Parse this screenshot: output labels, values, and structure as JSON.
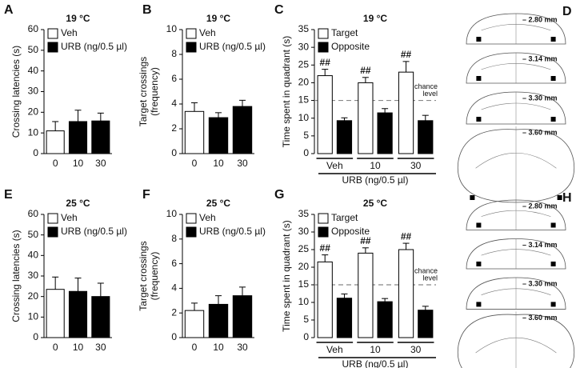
{
  "chart_data": [
    {
      "type": "bar",
      "panel": "A",
      "title": "19 °C",
      "ylabel": [
        "Crossing latencies (s)"
      ],
      "categories": [
        "0",
        "10",
        "30"
      ],
      "values": [
        11,
        15.5,
        15.8
      ],
      "errors": [
        4.5,
        5.5,
        3.8
      ],
      "colors": [
        "#ffffff",
        "#000000",
        "#000000"
      ],
      "legend": [
        {
          "name": "Veh",
          "color": "#ffffff"
        },
        {
          "name": "URB (ng/0.5 µl)",
          "color": "#000000"
        }
      ],
      "ylim": [
        0,
        60
      ],
      "yticks": [
        0,
        10,
        20,
        30,
        40,
        50,
        60
      ]
    },
    {
      "type": "bar",
      "panel": "B",
      "title": "19 °C",
      "ylabel": [
        "Target crossings",
        "(frequency)"
      ],
      "categories": [
        "0",
        "10",
        "30"
      ],
      "values": [
        3.4,
        2.9,
        3.8
      ],
      "errors": [
        0.7,
        0.4,
        0.5
      ],
      "colors": [
        "#ffffff",
        "#000000",
        "#000000"
      ],
      "legend": [
        {
          "name": "Veh",
          "color": "#ffffff"
        },
        {
          "name": "URB (ng/0.5 µl)",
          "color": "#000000"
        }
      ],
      "ylim": [
        0,
        10
      ],
      "yticks": [
        0,
        2,
        4,
        6,
        8,
        10
      ]
    },
    {
      "type": "grouped-bar",
      "panel": "C",
      "title": "19 °C",
      "ylabel": [
        "Time spent in quadrant (s)"
      ],
      "xlabel": "URB (ng/0.5 µl)",
      "categories": [
        "Veh",
        "10",
        "30"
      ],
      "series": [
        {
          "name": "Target",
          "color": "#ffffff",
          "values": [
            22,
            20,
            23
          ],
          "errors": [
            1.8,
            1.5,
            3
          ],
          "marks": [
            "##",
            "##",
            "##"
          ]
        },
        {
          "name": "Opposite",
          "color": "#000000",
          "values": [
            9.3,
            11.5,
            9.3
          ],
          "errors": [
            0.8,
            1.2,
            1.5
          ]
        }
      ],
      "hline": {
        "value": 15,
        "label": [
          "chance",
          "level"
        ]
      },
      "ylim": [
        0,
        35
      ],
      "yticks": [
        0,
        5,
        10,
        15,
        20,
        25,
        30,
        35
      ]
    },
    {
      "type": "diagram",
      "panel": "D",
      "labels": [
        "– 2.80 mm",
        "– 3.14 mm",
        "– 3.30 mm",
        "– 3.60 mm"
      ]
    },
    {
      "type": "bar",
      "panel": "E",
      "title": "25 °C",
      "ylabel": [
        "Crossing latencies (s)"
      ],
      "categories": [
        "0",
        "10",
        "30"
      ],
      "values": [
        23.5,
        22.5,
        20
      ],
      "errors": [
        6,
        6.5,
        6.5
      ],
      "colors": [
        "#ffffff",
        "#000000",
        "#000000"
      ],
      "legend": [
        {
          "name": "Veh",
          "color": "#ffffff"
        },
        {
          "name": "URB (ng/0.5 µl)",
          "color": "#000000"
        }
      ],
      "ylim": [
        0,
        60
      ],
      "yticks": [
        0,
        10,
        20,
        30,
        40,
        50,
        60
      ]
    },
    {
      "type": "bar",
      "panel": "F",
      "title": "25 °C",
      "ylabel": [
        "Target crossings",
        "(frequency)"
      ],
      "categories": [
        "0",
        "10",
        "30"
      ],
      "values": [
        2.2,
        2.7,
        3.4
      ],
      "errors": [
        0.6,
        0.7,
        0.7
      ],
      "colors": [
        "#ffffff",
        "#000000",
        "#000000"
      ],
      "legend": [
        {
          "name": "Veh",
          "color": "#ffffff"
        },
        {
          "name": "URB (ng/0.5 µl)",
          "color": "#000000"
        }
      ],
      "ylim": [
        0,
        10
      ],
      "yticks": [
        0,
        2,
        4,
        6,
        8,
        10
      ]
    },
    {
      "type": "grouped-bar",
      "panel": "G",
      "title": "25 °C",
      "ylabel": [
        "Time spent in quadrant (s)"
      ],
      "xlabel": "URB (ng/0.5 µl)",
      "categories": [
        "Veh",
        "10",
        "30"
      ],
      "series": [
        {
          "name": "Target",
          "color": "#ffffff",
          "values": [
            21.5,
            24,
            25
          ],
          "errors": [
            2,
            1.5,
            1.8
          ],
          "marks": [
            "##",
            "##",
            "##"
          ]
        },
        {
          "name": "Opposite",
          "color": "#000000",
          "values": [
            11.2,
            10.2,
            7.8
          ],
          "errors": [
            1.2,
            0.9,
            1.1
          ]
        }
      ],
      "hline": {
        "value": 15,
        "label": [
          "chance",
          "level"
        ]
      },
      "ylim": [
        0,
        35
      ],
      "yticks": [
        0,
        5,
        10,
        15,
        20,
        25,
        30,
        35
      ]
    },
    {
      "type": "diagram",
      "panel": "H",
      "labels": [
        "– 2.80 mm",
        "– 3.14 mm",
        "– 3.30 mm",
        "– 3.60 mm"
      ]
    }
  ]
}
